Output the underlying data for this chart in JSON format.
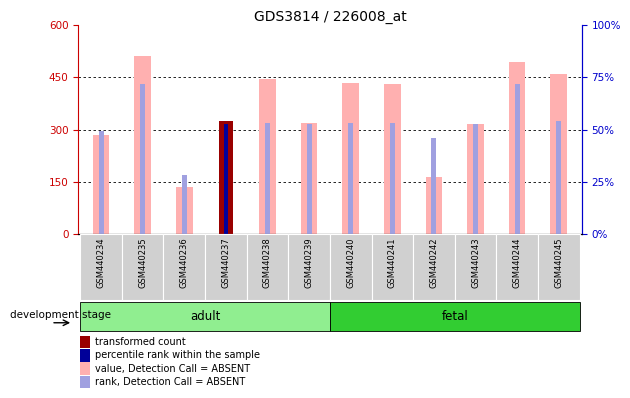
{
  "title": "GDS3814 / 226008_at",
  "samples": [
    "GSM440234",
    "GSM440235",
    "GSM440236",
    "GSM440237",
    "GSM440238",
    "GSM440239",
    "GSM440240",
    "GSM440241",
    "GSM440242",
    "GSM440243",
    "GSM440244",
    "GSM440245"
  ],
  "pink_values": [
    285,
    510,
    135,
    0,
    445,
    320,
    435,
    430,
    165,
    315,
    495,
    460
  ],
  "blue_rank_vals": [
    295,
    430,
    0,
    0,
    320,
    315,
    320,
    320,
    0,
    315,
    430,
    325
  ],
  "blue_sq_vals": [
    0,
    0,
    170,
    0,
    0,
    0,
    0,
    0,
    275,
    0,
    0,
    0
  ],
  "dark_red_vals": [
    0,
    0,
    0,
    325,
    0,
    0,
    0,
    0,
    0,
    0,
    0,
    0
  ],
  "dark_blue_vals": [
    0,
    0,
    0,
    315,
    0,
    0,
    0,
    0,
    0,
    0,
    0,
    0
  ],
  "group_adult_idx": [
    0,
    1,
    2,
    3,
    4,
    5
  ],
  "group_fetal_idx": [
    6,
    7,
    8,
    9,
    10,
    11
  ],
  "group_adult_label": "adult",
  "group_fetal_label": "fetal",
  "group_label": "development stage",
  "ylim_left": [
    0,
    600
  ],
  "ylim_right": [
    0,
    100
  ],
  "yticks_left": [
    0,
    150,
    300,
    450,
    600
  ],
  "yticks_right": [
    0,
    25,
    50,
    75,
    100
  ],
  "ytick_labels_right": [
    "0%",
    "25%",
    "50%",
    "75%",
    "100%"
  ],
  "color_pink": "#FFB0B0",
  "color_blue_rank": "#A0A0E0",
  "color_dark_red": "#990000",
  "color_dark_blue": "#000099",
  "color_adult_bg": "#90EE90",
  "color_fetal_bg": "#32CD32",
  "color_axis_left": "#CC0000",
  "color_axis_right": "#0000CC",
  "legend_items": [
    {
      "label": "transformed count",
      "color": "#990000"
    },
    {
      "label": "percentile rank within the sample",
      "color": "#000099"
    },
    {
      "label": "value, Detection Call = ABSENT",
      "color": "#FFB0B0"
    },
    {
      "label": "rank, Detection Call = ABSENT",
      "color": "#A0A0E0"
    }
  ]
}
